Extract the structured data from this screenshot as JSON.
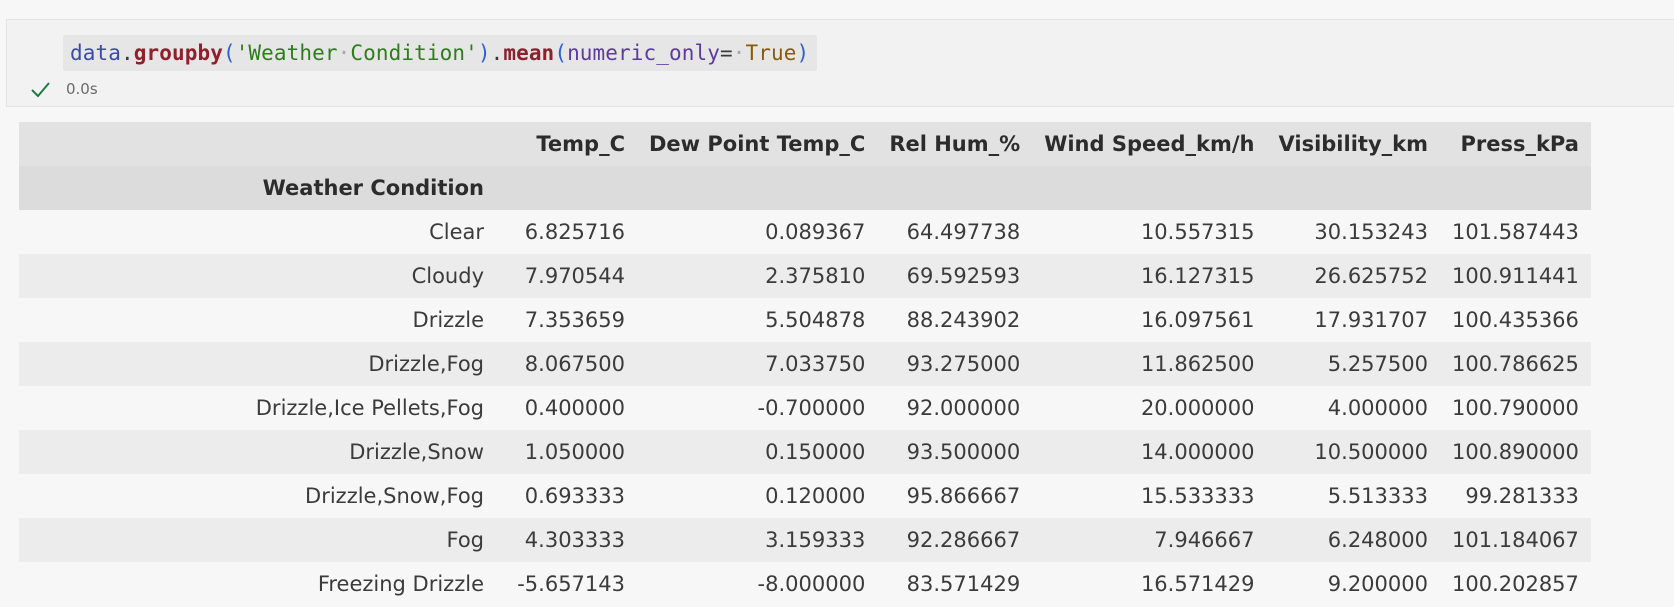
{
  "cell": {
    "code": {
      "t1": "data",
      "t2": ".",
      "t3": "groupby",
      "t4": "(",
      "t5": "'Weather",
      "t6": "·",
      "t7": "Condition'",
      "t8": ")",
      "t9": ".",
      "t10": "mean",
      "t11": "(",
      "t12": "numeric_only",
      "t13": "=",
      "t14": "·",
      "t15": "True",
      "t16": ")"
    },
    "status": {
      "icon": "checkmark-icon",
      "time": "0.0s",
      "color": "#1e7b46"
    }
  },
  "table": {
    "index_name": "Weather Condition",
    "columns": [
      "Temp_C",
      "Dew Point Temp_C",
      "Rel Hum_%",
      "Wind Speed_km/h",
      "Visibility_km",
      "Press_kPa"
    ],
    "rows": [
      {
        "index": "Clear",
        "values": [
          "6.825716",
          "0.089367",
          "64.497738",
          "10.557315",
          "30.153243",
          "101.587443"
        ]
      },
      {
        "index": "Cloudy",
        "values": [
          "7.970544",
          "2.375810",
          "69.592593",
          "16.127315",
          "26.625752",
          "100.911441"
        ]
      },
      {
        "index": "Drizzle",
        "values": [
          "7.353659",
          "5.504878",
          "88.243902",
          "16.097561",
          "17.931707",
          "100.435366"
        ]
      },
      {
        "index": "Drizzle,Fog",
        "values": [
          "8.067500",
          "7.033750",
          "93.275000",
          "11.862500",
          "5.257500",
          "100.786625"
        ]
      },
      {
        "index": "Drizzle,Ice Pellets,Fog",
        "values": [
          "0.400000",
          "-0.700000",
          "92.000000",
          "20.000000",
          "4.000000",
          "100.790000"
        ]
      },
      {
        "index": "Drizzle,Snow",
        "values": [
          "1.050000",
          "0.150000",
          "93.500000",
          "14.000000",
          "10.500000",
          "100.890000"
        ]
      },
      {
        "index": "Drizzle,Snow,Fog",
        "values": [
          "0.693333",
          "0.120000",
          "95.866667",
          "15.533333",
          "5.513333",
          "99.281333"
        ]
      },
      {
        "index": "Fog",
        "values": [
          "4.303333",
          "3.159333",
          "92.286667",
          "7.946667",
          "6.248000",
          "101.184067"
        ]
      },
      {
        "index": "Freezing Drizzle",
        "values": [
          "-5.657143",
          "-8.000000",
          "83.571429",
          "16.571429",
          "9.200000",
          "100.202857"
        ]
      }
    ]
  }
}
